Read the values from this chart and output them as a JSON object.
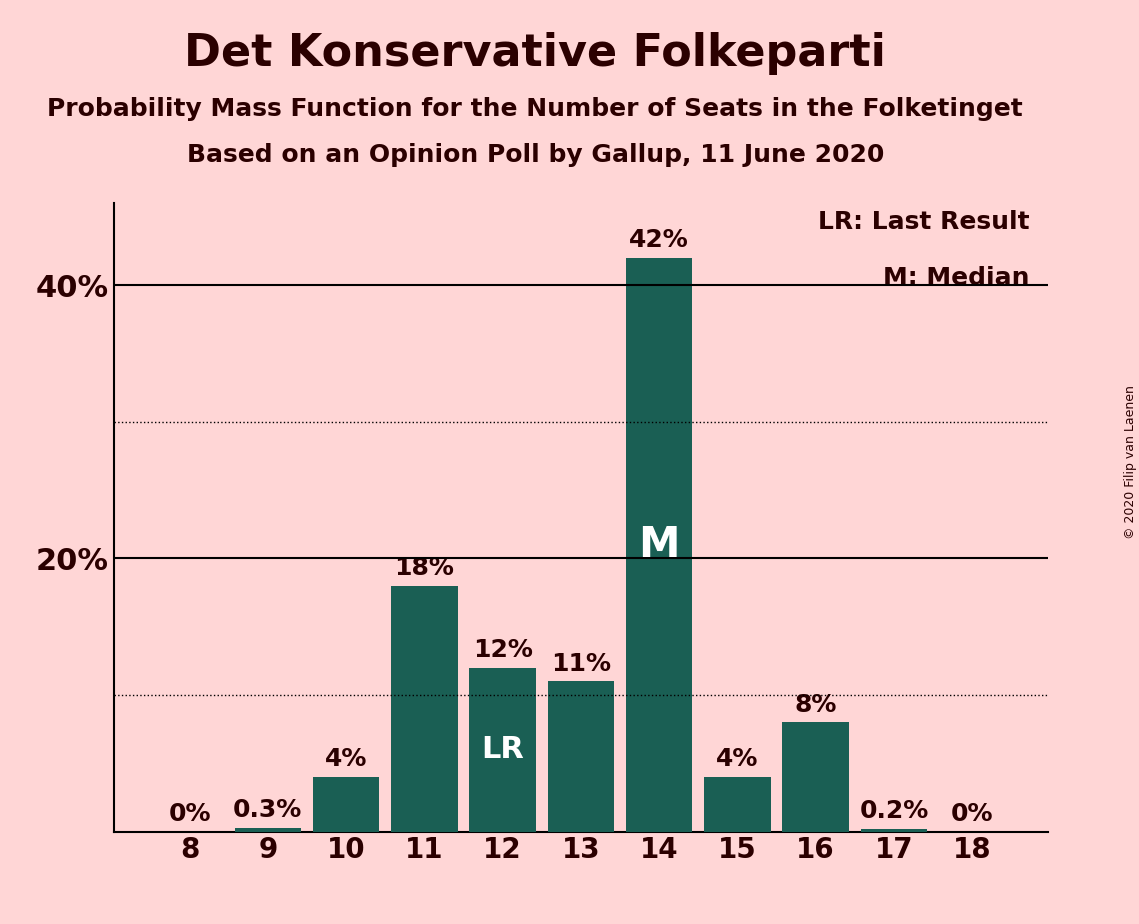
{
  "title": "Det Konservative Folkeparti",
  "subtitle1": "Probability Mass Function for the Number of Seats in the Folketinget",
  "subtitle2": "Based on an Opinion Poll by Gallup, 11 June 2020",
  "copyright": "© 2020 Filip van Laenen",
  "seats": [
    8,
    9,
    10,
    11,
    12,
    13,
    14,
    15,
    16,
    17,
    18
  ],
  "probabilities": [
    0.0,
    0.3,
    4.0,
    18.0,
    12.0,
    11.0,
    42.0,
    4.0,
    8.0,
    0.2,
    0.0
  ],
  "bar_color": "#1a5f54",
  "background_color": "#ffd6d6",
  "label_color": "#2b0000",
  "bar_labels": [
    "0%",
    "0.3%",
    "4%",
    "18%",
    "12%",
    "11%",
    "42%",
    "4%",
    "8%",
    "0.2%",
    "0%"
  ],
  "median_seat": 14,
  "lr_seat": 12,
  "ylim": [
    0,
    46
  ],
  "solid_yticks": [
    20,
    40
  ],
  "dotted_yticks": [
    10,
    30
  ],
  "legend_lr": "LR: Last Result",
  "legend_m": "M: Median",
  "title_fontsize": 32,
  "subtitle_fontsize": 18,
  "bar_label_fontsize": 18,
  "inside_label_m_fontsize": 30,
  "inside_label_lr_fontsize": 22,
  "tick_fontsize": 20,
  "legend_fontsize": 18,
  "ytick_label_fontsize": 22
}
